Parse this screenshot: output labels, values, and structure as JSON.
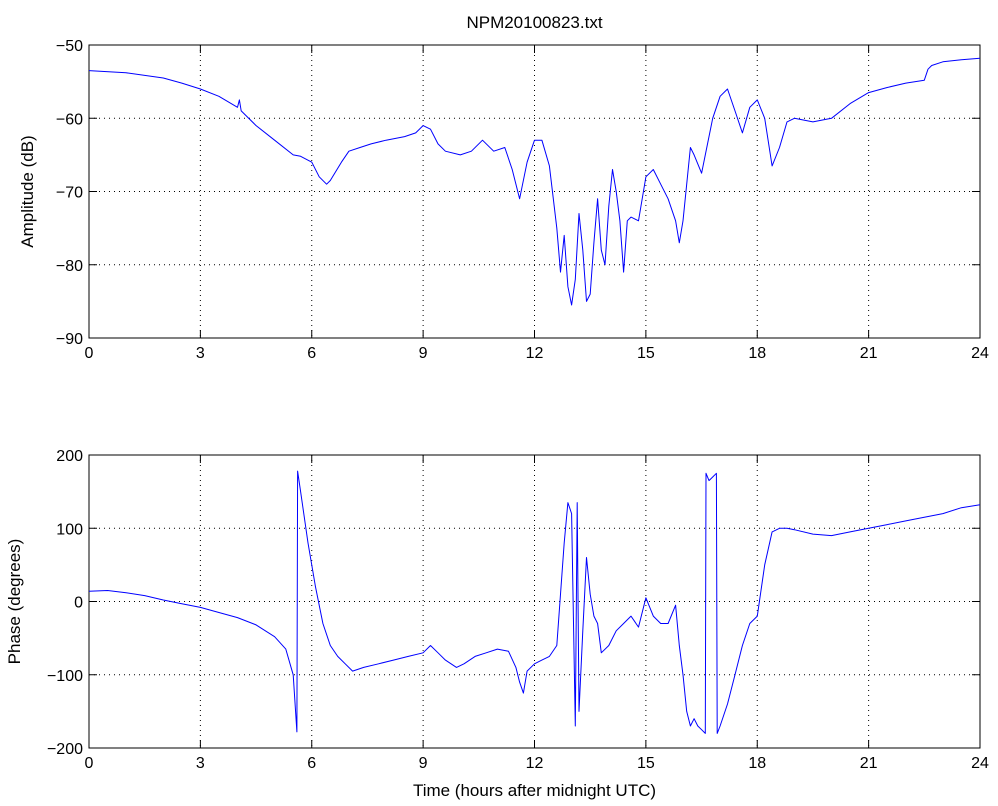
{
  "chart_data": [
    {
      "type": "line",
      "title": "NPM20100823.txt",
      "xlabel": "",
      "ylabel": "Amplitude (dB)",
      "xlim": [
        0,
        24
      ],
      "ylim": [
        -90,
        -50
      ],
      "xticks": [
        0,
        3,
        6,
        9,
        12,
        15,
        18,
        21,
        24
      ],
      "yticks": [
        -90,
        -80,
        -70,
        -60,
        -50
      ],
      "grid": true,
      "color": "#0000ff",
      "series": [
        {
          "x": [
            0,
            1,
            2,
            2.5,
            3,
            3.5,
            4,
            4.05,
            4.1,
            4.5,
            5,
            5.5,
            5.7,
            6.0,
            6.2,
            6.4,
            6.5,
            6.8,
            7,
            7.3,
            7.6,
            8,
            8.5,
            8.8,
            9.0,
            9.2,
            9.4,
            9.6,
            10,
            10.3,
            10.6,
            10.9,
            11.2,
            11.4,
            11.6,
            11.8,
            12.0,
            12.2,
            12.4,
            12.6,
            12.7,
            12.8,
            12.9,
            13.0,
            13.1,
            13.2,
            13.3,
            13.4,
            13.5,
            13.6,
            13.7,
            13.8,
            13.9,
            14.0,
            14.1,
            14.2,
            14.3,
            14.4,
            14.5,
            14.6,
            14.8,
            15.0,
            15.2,
            15.4,
            15.6,
            15.8,
            15.9,
            16.0,
            16.1,
            16.2,
            16.3,
            16.5,
            16.6,
            16.8,
            17.0,
            17.2,
            17.4,
            17.6,
            17.8,
            18.0,
            18.2,
            18.4,
            18.6,
            18.8,
            19.0,
            19.5,
            20.0,
            20.5,
            21.0,
            21.5,
            22.0,
            22.5,
            22.6,
            22.7,
            23.0,
            23.5,
            24.0
          ],
          "y": [
            -53.5,
            -53.8,
            -54.5,
            -55.2,
            -56,
            -57,
            -58.5,
            -57.5,
            -59,
            -61,
            -63,
            -65,
            -65.2,
            -66,
            -68,
            -69,
            -68.5,
            -66,
            -64.5,
            -64,
            -63.5,
            -63,
            -62.5,
            -62,
            -61,
            -61.5,
            -63.5,
            -64.5,
            -65,
            -64.5,
            -63,
            -64.5,
            -64,
            -67,
            -71,
            -66,
            -63,
            -63,
            -66.5,
            -75,
            -81,
            -76,
            -83,
            -85.5,
            -82,
            -73,
            -78,
            -85,
            -84,
            -77,
            -71,
            -78,
            -80,
            -72,
            -67,
            -70,
            -74,
            -81,
            -74,
            -73.5,
            -74,
            -68,
            -67,
            -69,
            -71,
            -74,
            -77,
            -74,
            -69,
            -64,
            -65,
            -67.5,
            -65,
            -60,
            -57,
            -56,
            -59,
            -62,
            -58.5,
            -57.5,
            -60,
            -66.5,
            -64,
            -60.5,
            -60,
            -60.5,
            -60,
            -58,
            -56.5,
            -55.8,
            -55.2,
            -54.8,
            -53.3,
            -52.8,
            -52.3,
            -52,
            -51.8
          ]
        }
      ]
    },
    {
      "type": "line",
      "title": "",
      "xlabel": "Time (hours after midnight UTC)",
      "ylabel": "Phase (degrees)",
      "xlim": [
        0,
        24
      ],
      "ylim": [
        -200,
        200
      ],
      "xticks": [
        0,
        3,
        6,
        9,
        12,
        15,
        18,
        21,
        24
      ],
      "yticks": [
        -200,
        -100,
        0,
        100,
        200
      ],
      "grid": true,
      "color": "#0000ff",
      "series": [
        {
          "x": [
            0,
            0.5,
            1,
            1.5,
            2,
            2.5,
            3,
            3.5,
            4,
            4.5,
            5,
            5.3,
            5.5,
            5.6,
            5.62,
            5.7,
            5.9,
            6.1,
            6.3,
            6.5,
            6.7,
            6.9,
            7.1,
            7.4,
            7.8,
            8.2,
            8.6,
            9.0,
            9.2,
            9.4,
            9.6,
            9.9,
            10.1,
            10.4,
            10.7,
            11.0,
            11.3,
            11.5,
            11.6,
            11.7,
            11.8,
            12.0,
            12.2,
            12.4,
            12.6,
            12.8,
            12.9,
            13.0,
            13.1,
            13.15,
            13.2,
            13.3,
            13.4,
            13.5,
            13.6,
            13.7,
            13.8,
            14.0,
            14.2,
            14.4,
            14.6,
            14.8,
            15.0,
            15.2,
            15.4,
            15.6,
            15.8,
            15.9,
            16.0,
            16.1,
            16.2,
            16.3,
            16.4,
            16.5,
            16.6,
            16.62,
            16.7,
            16.8,
            16.9,
            16.92,
            17.0,
            17.2,
            17.4,
            17.6,
            17.8,
            18.0,
            18.2,
            18.4,
            18.6,
            18.8,
            19.0,
            19.5,
            20.0,
            20.5,
            21.0,
            21.5,
            22.0,
            22.5,
            23.0,
            23.5,
            24.0
          ],
          "y": [
            14,
            15,
            12,
            8,
            2,
            -3,
            -8,
            -15,
            -22,
            -32,
            -48,
            -65,
            -100,
            -178,
            178,
            150,
            80,
            20,
            -30,
            -60,
            -75,
            -85,
            -95,
            -90,
            -85,
            -80,
            -75,
            -70,
            -60,
            -70,
            -80,
            -90,
            -85,
            -75,
            -70,
            -65,
            -68,
            -90,
            -110,
            -125,
            -95,
            -85,
            -80,
            -75,
            -60,
            80,
            135,
            120,
            -170,
            135,
            -150,
            -40,
            60,
            10,
            -20,
            -30,
            -70,
            -60,
            -40,
            -30,
            -20,
            -35,
            5,
            -20,
            -30,
            -30,
            -5,
            -60,
            -100,
            -150,
            -170,
            -160,
            -170,
            -175,
            -180,
            175,
            165,
            170,
            175,
            -180,
            -170,
            -140,
            -100,
            -60,
            -30,
            -20,
            50,
            95,
            100,
            100,
            98,
            92,
            90,
            95,
            100,
            105,
            110,
            115,
            120,
            128,
            132
          ]
        }
      ]
    }
  ]
}
